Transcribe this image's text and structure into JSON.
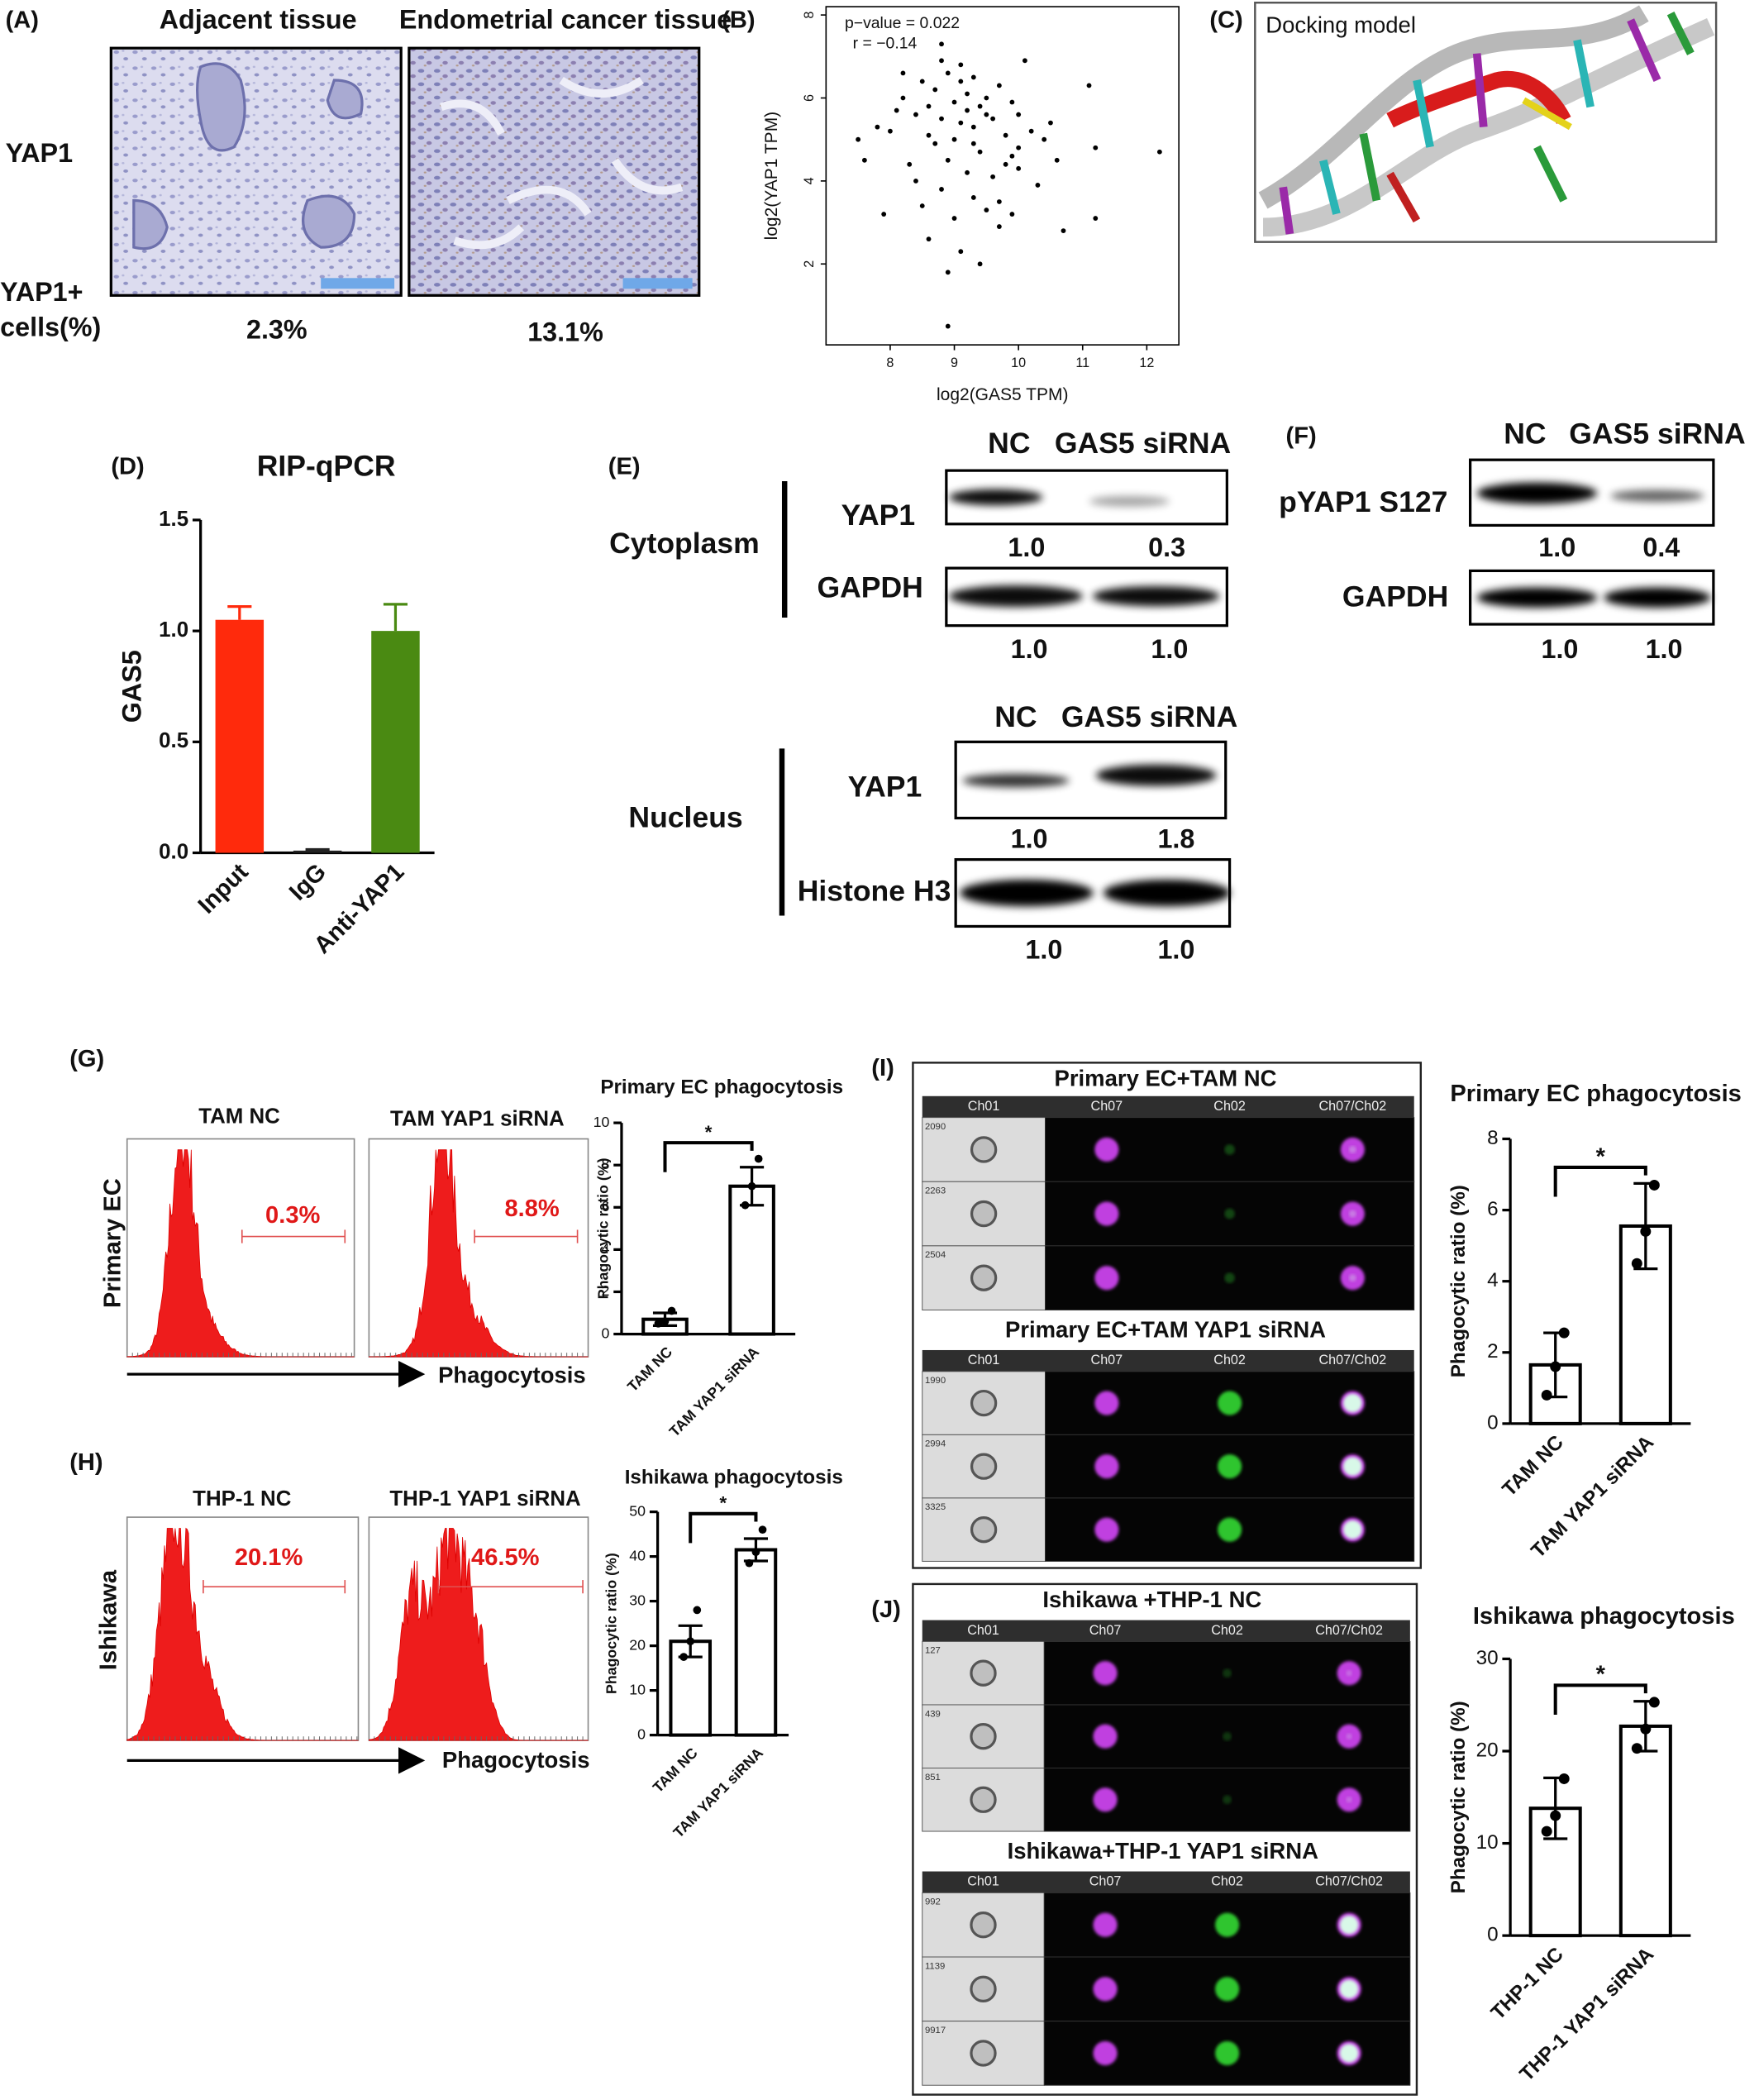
{
  "figure": {
    "panel_labels": [
      "(A)",
      "(B)",
      "(C)",
      "(D)",
      "(E)",
      "(F)",
      "(G)",
      "(H)",
      "(I)",
      "(J)"
    ],
    "A": {
      "columns": [
        "Adjacent  tissue",
        "Endometrial cancer tissue"
      ],
      "row_label": "YAP1",
      "quant_label": [
        "YAP1+",
        "cells(%)"
      ],
      "quant": [
        "2.3%",
        "13.1%"
      ]
    },
    "C": {
      "title": "Docking model"
    },
    "E": {
      "cytoplasm": {
        "section": "Cytoplasm",
        "lanes": [
          "NC",
          "GAS5 siRNA"
        ],
        "blots": [
          {
            "label": "YAP1",
            "quant": [
              "1.0",
              "0.3"
            ]
          },
          {
            "label": "GAPDH",
            "quant": [
              "1.0",
              "1.0"
            ]
          }
        ]
      },
      "nucleus": {
        "section": "Nucleus",
        "lanes": [
          "NC",
          "GAS5 siRNA"
        ],
        "blots": [
          {
            "label": "YAP1",
            "quant": [
              "1.0",
              "1.8"
            ]
          },
          {
            "label": "Histone H3",
            "quant": [
              "1.0",
              "1.0"
            ]
          }
        ]
      }
    },
    "F": {
      "lanes": [
        "NC",
        "GAS5 siRNA"
      ],
      "blots": [
        {
          "label": "pYAP1 S127",
          "quant": [
            "1.0",
            "0.4"
          ]
        },
        {
          "label": "GAPDH",
          "quant": [
            "1.0",
            "1.0"
          ]
        }
      ]
    },
    "G": {
      "samples": [
        "TAM NC",
        "TAM YAP1 siRNA"
      ],
      "row_label": "Primary EC",
      "gates": [
        "0.3%",
        "8.8%"
      ],
      "axis_label": "Phagocytosis"
    },
    "H": {
      "samples": [
        "THP-1 NC",
        "THP-1 YAP1 siRNA"
      ],
      "row_label": "Ishikawa",
      "gates": [
        "20.1%",
        "46.5%"
      ],
      "axis_label": "Phagocytosis"
    },
    "I": {
      "channels": [
        "Ch01",
        "Ch07",
        "Ch02",
        "Ch07/Ch02"
      ],
      "blocks": [
        {
          "title": "Primary EC+TAM NC",
          "cell_ids": [
            "2090",
            "2263",
            "2504"
          ]
        },
        {
          "title": "Primary EC+TAM YAP1 siRNA",
          "cell_ids": [
            "1990",
            "2994",
            "3325"
          ]
        }
      ]
    },
    "J": {
      "channels": [
        "Ch01",
        "Ch07",
        "Ch02",
        "Ch07/Ch02"
      ],
      "blocks": [
        {
          "title": "Ishikawa +THP-1 NC",
          "cell_ids": [
            "127",
            "439",
            "851"
          ]
        },
        {
          "title": "Ishikawa+THP-1 YAP1 siRNA",
          "cell_ids": [
            "992",
            "1139",
            "9917"
          ]
        }
      ]
    }
  },
  "chart_data": [
    {
      "type": "scatter",
      "annotations": [
        "p−value = 0.022",
        "r = −0.14"
      ],
      "xlabel": "log2(GAS5 TPM)",
      "ylabel": "log2(YAP1 TPM)",
      "x": [
        8.0,
        8.2,
        8.3,
        8.4,
        8.5,
        8.5,
        8.6,
        8.6,
        8.7,
        8.7,
        8.8,
        8.8,
        8.8,
        8.9,
        8.9,
        8.9,
        9.0,
        9.0,
        9.0,
        9.1,
        9.1,
        9.1,
        9.2,
        9.2,
        9.2,
        9.3,
        9.3,
        9.3,
        9.4,
        9.4,
        9.4,
        9.5,
        9.5,
        9.6,
        9.6,
        9.7,
        9.7,
        9.8,
        9.8,
        9.9,
        9.9,
        10.0,
        10.0,
        10.1,
        10.2,
        10.3,
        10.4,
        10.6,
        10.7,
        11.1,
        11.2,
        11.2,
        12.2,
        7.5,
        7.6,
        7.8,
        7.9,
        8.1,
        8.2,
        8.4,
        8.6,
        8.9,
        9.1,
        9.3,
        9.5,
        9.7,
        10.0,
        10.5,
        8.8,
        9.9
      ],
      "y": [
        5.2,
        6.0,
        4.4,
        5.6,
        6.4,
        3.4,
        5.8,
        2.6,
        6.2,
        4.9,
        5.5,
        3.8,
        7.3,
        6.6,
        4.5,
        1.8,
        5.9,
        5.0,
        3.1,
        6.8,
        5.4,
        2.3,
        6.1,
        4.2,
        5.7,
        5.3,
        3.6,
        6.5,
        5.8,
        4.7,
        2.0,
        6.0,
        3.3,
        5.5,
        4.1,
        6.3,
        2.9,
        5.1,
        4.4,
        5.9,
        3.2,
        5.6,
        4.3,
        6.9,
        5.2,
        3.9,
        5.0,
        4.5,
        2.8,
        6.3,
        4.8,
        3.1,
        4.7,
        5.0,
        4.5,
        5.3,
        3.2,
        5.7,
        6.6,
        4.0,
        5.1,
        0.5,
        6.4,
        4.9,
        5.6,
        3.5,
        4.8,
        5.4,
        6.9,
        4.6
      ],
      "color": "#000000",
      "xlim": [
        7.0,
        12.5
      ],
      "xticks": [
        8,
        9,
        10,
        11,
        12
      ],
      "ylim": [
        0.05,
        8.2
      ],
      "yticks": [
        2,
        4,
        6,
        8
      ]
    },
    {
      "type": "bar",
      "title": "RIP-qPCR",
      "categories": [
        "Input",
        "IgG",
        "Anti-YAP1"
      ],
      "values": [
        1.05,
        0.01,
        1.0
      ],
      "errors": [
        0.06,
        0.005,
        0.12
      ],
      "colors": [
        "#ff2a0c",
        "#222222",
        "#4a8a12"
      ],
      "ylabel": "GAS5",
      "ylim": [
        0,
        1.5
      ],
      "yticks": [
        {
          "value": 0,
          "label": "0.0"
        },
        {
          "value": 0.5,
          "label": "0.5"
        },
        {
          "value": 1,
          "label": "1.0"
        },
        {
          "value": 1.5,
          "label": "1.5"
        }
      ]
    },
    {
      "type": "bar",
      "title": "Primary EC phagocytosis",
      "categories": [
        "TAM NC",
        "TAM YAP1 siRNA"
      ],
      "values": [
        0.7,
        7.0
      ],
      "errors": [
        0.3,
        0.9
      ],
      "points": [
        [
          0.5,
          0.6,
          1.1
        ],
        [
          6.1,
          7.0,
          8.3
        ]
      ],
      "color": "#ffffff",
      "significance": "*",
      "ylabel": "Phagocytic ratio (%)",
      "ylim": [
        0,
        10
      ],
      "yticks": [
        0,
        2,
        4,
        6,
        8,
        10
      ]
    },
    {
      "type": "bar",
      "title": "Ishikawa phagocytosis",
      "categories": [
        "TAM NC",
        "TAM YAP1 siRNA"
      ],
      "values": [
        21,
        41.5
      ],
      "errors": [
        3.5,
        2.5
      ],
      "points": [
        [
          17.5,
          21,
          28
        ],
        [
          38.5,
          41,
          46
        ]
      ],
      "color": "#ffffff",
      "significance": "*",
      "ylabel": "Phagocytic ratio (%)",
      "ylim": [
        0,
        50
      ],
      "yticks": [
        0,
        10,
        20,
        30,
        40,
        50
      ]
    },
    {
      "type": "bar",
      "title": "Primary EC phagocytosis",
      "categories": [
        "TAM NC",
        "TAM YAP1 siRNA"
      ],
      "values": [
        1.65,
        5.55
      ],
      "errors": [
        0.9,
        1.2
      ],
      "points": [
        [
          0.8,
          1.6,
          2.55
        ],
        [
          4.5,
          5.4,
          6.7
        ]
      ],
      "color": "#ffffff",
      "significance": "*",
      "ylabel": "Phagocytic ratio (%)",
      "ylim": [
        0,
        8
      ],
      "yticks": [
        0,
        2,
        4,
        6,
        8
      ]
    },
    {
      "type": "bar",
      "title": "Ishikawa phagocytosis",
      "categories": [
        "THP-1 NC",
        "THP-1 YAP1 siRNA"
      ],
      "values": [
        13.8,
        22.7
      ],
      "errors": [
        3.3,
        2.7
      ],
      "points": [
        [
          11.3,
          13.0,
          17.0
        ],
        [
          20.3,
          22.4,
          25.3
        ]
      ],
      "color": "#ffffff",
      "significance": "*",
      "ylabel": "Phagocytic ratio (%)",
      "ylim": [
        0,
        30
      ],
      "yticks": [
        0,
        10,
        20,
        30
      ]
    }
  ]
}
